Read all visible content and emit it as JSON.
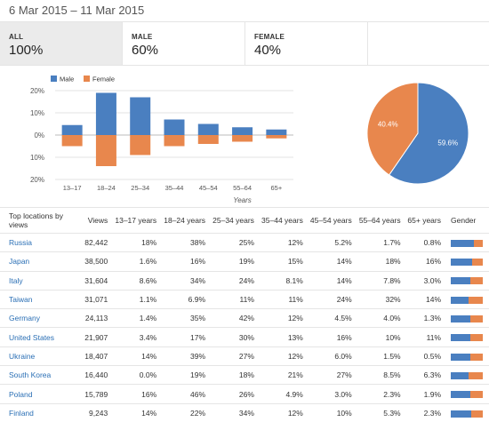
{
  "header": {
    "date_range": "6 Mar 2015 – 11 Mar 2015"
  },
  "tabs": [
    {
      "label": "ALL",
      "value": "100%",
      "active": true
    },
    {
      "label": "MALE",
      "value": "60%",
      "active": false
    },
    {
      "label": "FEMALE",
      "value": "40%",
      "active": false
    }
  ],
  "colors": {
    "male": "#4a7fc0",
    "female": "#e8874d"
  },
  "chart_data": [
    {
      "type": "bar",
      "legend": [
        "Male",
        "Female"
      ],
      "legend_position": "top-left",
      "categories": [
        "13–17",
        "18–24",
        "25–34",
        "35–44",
        "45–54",
        "55–64",
        "65+"
      ],
      "series": [
        {
          "name": "Male",
          "values": [
            4.5,
            19,
            17,
            7,
            5,
            3.5,
            2.5
          ]
        },
        {
          "name": "Female",
          "values": [
            -5,
            -14,
            -9,
            -5,
            -4,
            -3,
            -1.5
          ]
        }
      ],
      "yticks": [
        "20%",
        "10%",
        "0%",
        "10%",
        "20%"
      ],
      "ylim": [
        -20,
        20
      ],
      "xlabel": "Years",
      "grid": true
    },
    {
      "type": "pie",
      "slices": [
        {
          "label": "59.6%",
          "value": 59.6,
          "color": "#4a7fc0"
        },
        {
          "label": "40.4%",
          "value": 40.4,
          "color": "#e8874d"
        }
      ]
    }
  ],
  "table": {
    "headers": [
      "Top locations by views",
      "Views",
      "13–17 years",
      "18–24 years",
      "25–34 years",
      "35–44 years",
      "45–54 years",
      "55–64 years",
      "65+ years",
      "Gender"
    ],
    "rows": [
      {
        "country": "Russia",
        "views": "82,442",
        "ages": [
          "18%",
          "38%",
          "25%",
          "12%",
          "5.2%",
          "1.7%",
          "0.8%"
        ],
        "male_share": 0.72
      },
      {
        "country": "Japan",
        "views": "38,500",
        "ages": [
          "1.6%",
          "16%",
          "19%",
          "15%",
          "14%",
          "18%",
          "16%"
        ],
        "male_share": 0.68
      },
      {
        "country": "Italy",
        "views": "31,604",
        "ages": [
          "8.6%",
          "34%",
          "24%",
          "8.1%",
          "14%",
          "7.8%",
          "3.0%"
        ],
        "male_share": 0.62
      },
      {
        "country": "Taiwan",
        "views": "31,071",
        "ages": [
          "1.1%",
          "6.9%",
          "11%",
          "11%",
          "24%",
          "32%",
          "14%"
        ],
        "male_share": 0.55
      },
      {
        "country": "Germany",
        "views": "24,113",
        "ages": [
          "1.4%",
          "35%",
          "42%",
          "12%",
          "4.5%",
          "4.0%",
          "1.3%"
        ],
        "male_share": 0.62
      },
      {
        "country": "United States",
        "views": "21,907",
        "ages": [
          "3.4%",
          "17%",
          "30%",
          "13%",
          "16%",
          "10%",
          "11%"
        ],
        "male_share": 0.6
      },
      {
        "country": "Ukraine",
        "views": "18,407",
        "ages": [
          "14%",
          "39%",
          "27%",
          "12%",
          "6.0%",
          "1.5%",
          "0.5%"
        ],
        "male_share": 0.6
      },
      {
        "country": "South Korea",
        "views": "16,440",
        "ages": [
          "0.0%",
          "19%",
          "18%",
          "21%",
          "27%",
          "8.5%",
          "6.3%"
        ],
        "male_share": 0.55
      },
      {
        "country": "Poland",
        "views": "15,789",
        "ages": [
          "16%",
          "46%",
          "26%",
          "4.9%",
          "3.0%",
          "2.3%",
          "1.9%"
        ],
        "male_share": 0.6
      },
      {
        "country": "Finland",
        "views": "9,243",
        "ages": [
          "14%",
          "22%",
          "34%",
          "12%",
          "10%",
          "5.3%",
          "2.3%"
        ],
        "male_share": 0.64
      }
    ]
  }
}
